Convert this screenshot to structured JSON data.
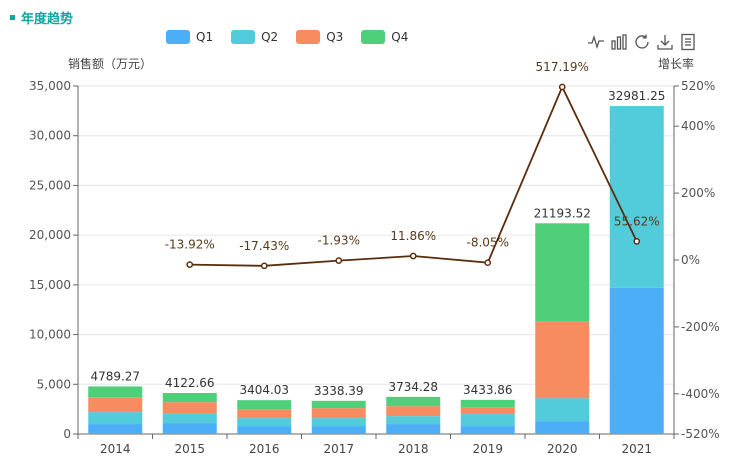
{
  "page": {
    "title": "年度趋势"
  },
  "toolbox": [
    {
      "name": "line-chart-icon"
    },
    {
      "name": "bar-chart-icon"
    },
    {
      "name": "restore-icon"
    },
    {
      "name": "download-icon"
    },
    {
      "name": "data-view-icon"
    }
  ],
  "colors": {
    "Q1": "#4daef8",
    "Q2": "#52ccdb",
    "Q3": "#f78c61",
    "Q4": "#50cf7b",
    "line": "#5a2d0c",
    "accent": "#14a3a3"
  },
  "chart_data": {
    "type": "bar",
    "categories": [
      "2014",
      "2015",
      "2016",
      "2017",
      "2018",
      "2019",
      "2020",
      "2021"
    ],
    "ylabel": "销售额（万元）",
    "y2label": "增长率",
    "ylim": [
      0,
      35000
    ],
    "y2lim": [
      -520,
      520
    ],
    "yticks": [
      "0",
      "5,000",
      "10,000",
      "15,000",
      "20,000",
      "25,000",
      "30,000",
      "35,000"
    ],
    "y2ticks": [
      "-520%",
      "-400%",
      "-200%",
      "0%",
      "200%",
      "400%",
      "520%"
    ],
    "series": [
      {
        "name": "Q1",
        "values": [
          1000,
          1100,
          800,
          800,
          1000,
          800,
          1300,
          14700
        ]
      },
      {
        "name": "Q2",
        "values": [
          1200,
          1000,
          800,
          800,
          800,
          1200,
          2300,
          18281.25
        ]
      },
      {
        "name": "Q3",
        "values": [
          1500,
          1100,
          900,
          1000,
          1000,
          700,
          7700,
          0
        ]
      },
      {
        "name": "Q4",
        "values": [
          1089.27,
          922.66,
          904.03,
          738.39,
          934.28,
          733.86,
          9893.52,
          0
        ]
      }
    ],
    "totals": [
      "4789.27",
      "4122.66",
      "3404.03",
      "3338.39",
      "3734.28",
      "3433.86",
      "21193.52",
      "32981.25"
    ],
    "growth": {
      "values": [
        null,
        -13.92,
        -17.43,
        -1.93,
        11.86,
        -8.05,
        517.19,
        55.62
      ],
      "labels": [
        null,
        "-13.92%",
        "-17.43%",
        "-1.93%",
        "11.86%",
        "-8.05%",
        "517.19%",
        "55.62%"
      ]
    },
    "grid": true,
    "legend": "top-center"
  }
}
